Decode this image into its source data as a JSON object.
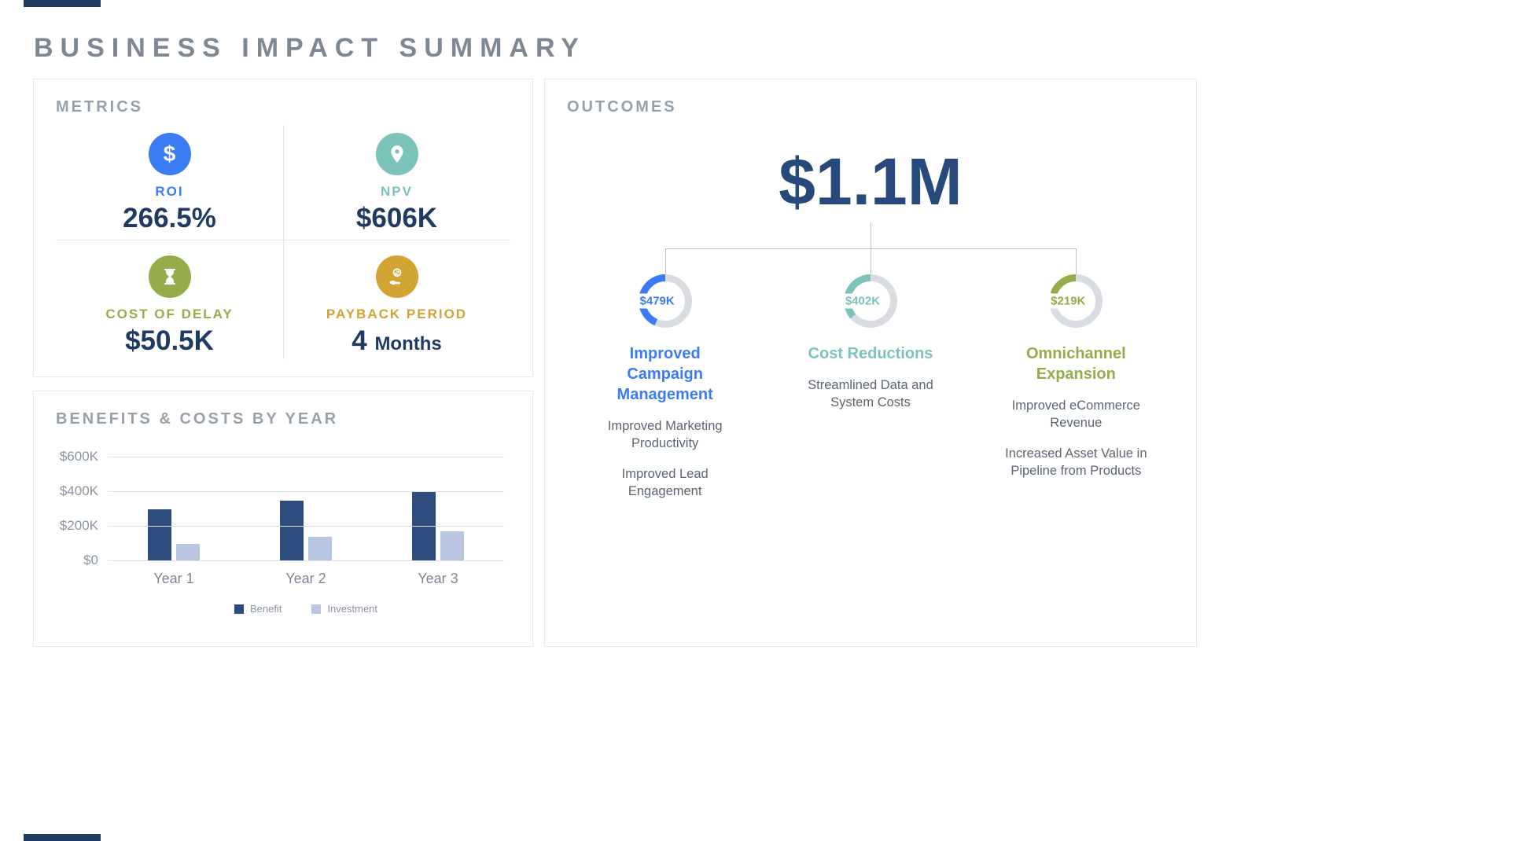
{
  "page": {
    "title": "BUSINESS IMPACT SUMMARY"
  },
  "palette": {
    "navy": "#1f3a63",
    "big_total_navy": "#27497b",
    "blue": "#3b7cf5",
    "teal": "#7cc3bb",
    "olive": "#94ad4a",
    "gold": "#d2a433",
    "donut_track": "#d9dde2",
    "grid_line": "#dde2e8",
    "connector": "#b9c2cb",
    "bar_benefit": "#2d4d7e",
    "bar_investment": "#b9c6e2"
  },
  "metrics": {
    "header": "METRICS",
    "items": [
      {
        "label": "ROI",
        "value": "266.5%",
        "icon": "dollar-icon",
        "glyph": "$",
        "color": "#3b7cf5"
      },
      {
        "label": "NPV",
        "value": "$606K",
        "icon": "location-pin-icon",
        "color": "#7cc3bb"
      },
      {
        "label": "COST OF DELAY",
        "value": "$50.5K",
        "icon": "hourglass-icon",
        "color": "#94ad4a"
      },
      {
        "label": "PAYBACK PERIOD",
        "value": "4",
        "value_suffix": "Months",
        "icon": "payback-hand-coin-icon",
        "color": "#d2a433"
      }
    ]
  },
  "benefits_card": {
    "header": "BENEFITS & COSTS BY YEAR"
  },
  "chart_data": [
    {
      "type": "bar",
      "title": "BENEFITS & COSTS BY YEAR",
      "categories": [
        "Year 1",
        "Year 2",
        "Year 3"
      ],
      "series": [
        {
          "name": "Benefit",
          "color": "#2d4d7e",
          "values": [
            300000,
            350000,
            400000
          ]
        },
        {
          "name": "Investment",
          "color": "#b9c6e2",
          "values": [
            100000,
            140000,
            175000
          ]
        }
      ],
      "xlabel": "",
      "ylabel": "",
      "ylim": [
        0,
        600000
      ],
      "yticks": [
        {
          "label": "$0",
          "value": 0
        },
        {
          "label": "$200K",
          "value": 200000
        },
        {
          "label": "$400K",
          "value": 400000
        },
        {
          "label": "$600K",
          "value": 600000
        }
      ],
      "grid": true,
      "legend_position": "bottom"
    },
    {
      "type": "pie",
      "title": "OUTCOMES",
      "total_label": "$1.1M",
      "slices": [
        {
          "label": "Improved Campaign Management",
          "value_label": "$479K",
          "value": 479000,
          "percent": 43.5,
          "color": "#3b7cf5"
        },
        {
          "label": "Cost Reductions",
          "value_label": "$402K",
          "value": 402000,
          "percent": 36.5,
          "color": "#7cc3bb"
        },
        {
          "label": "Omnichannel Expansion",
          "value_label": "$219K",
          "value": 219000,
          "percent": 19.9,
          "color": "#94ad4a"
        }
      ]
    }
  ],
  "outcomes": {
    "header": "OUTCOMES",
    "total": "$1.1M",
    "branches": [
      {
        "value": "$479K",
        "percent": 43.5,
        "color": "#3b7cf5",
        "title": "Improved Campaign Management",
        "details": [
          "Improved Marketing Productivity",
          "Improved Lead Engagement"
        ]
      },
      {
        "value": "$402K",
        "percent": 36.5,
        "color": "#7cc3bb",
        "title": "Cost Reductions",
        "details": [
          "Streamlined Data and System Costs"
        ]
      },
      {
        "value": "$219K",
        "percent": 19.9,
        "color": "#94ad4a",
        "title": "Omnichannel Expansion",
        "details": [
          "Improved eCommerce Revenue",
          "Increased Asset Value in Pipeline from Products"
        ]
      }
    ]
  }
}
